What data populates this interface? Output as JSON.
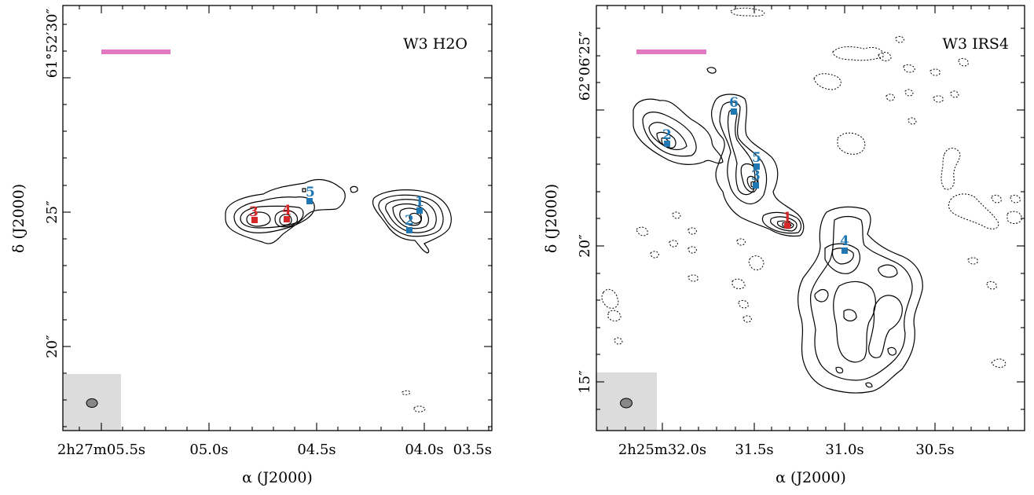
{
  "colors": {
    "scalebar": "#e377c2",
    "beam_box": "#dcdcdc",
    "beam": "#888888",
    "red_source": "#d62728",
    "blue_source": "#1f77b4"
  },
  "panels": [
    {
      "title": "W3 H2O",
      "ra_tick_labels": [
        "2h27m05.5s",
        "05.0s",
        "04.5s",
        "04.0s",
        "03.5s"
      ],
      "dec_tick_labels": [
        "61°52′30″",
        "25″",
        "20″"
      ],
      "xlabel": "α (J2000)",
      "ylabel": "δ (J2000)",
      "sources": [
        {
          "id": "1",
          "color": "blue"
        },
        {
          "id": "2",
          "color": "blue"
        },
        {
          "id": "3",
          "color": "red"
        },
        {
          "id": "4",
          "color": "red"
        },
        {
          "id": "5",
          "color": "blue"
        }
      ]
    },
    {
      "title": "W3 IRS4",
      "ra_tick_labels": [
        "2h25m32.0s",
        "31.5s",
        "31.0s",
        "30.5s"
      ],
      "dec_tick_labels": [
        "62°06′25″",
        "20″",
        "15″"
      ],
      "xlabel": "α (J2000)",
      "ylabel": "δ (J2000)",
      "sources": [
        {
          "id": "1",
          "color": "red"
        },
        {
          "id": "2",
          "color": "blue"
        },
        {
          "id": "3",
          "color": "blue"
        },
        {
          "id": "4",
          "color": "blue"
        },
        {
          "id": "5",
          "color": "blue"
        },
        {
          "id": "6",
          "color": "blue"
        }
      ]
    }
  ],
  "display": {
    "left": {
      "ra_major": [
        "2",
        "27",
        "05.5",
        "05.0",
        "04.5",
        "04.0",
        "03.5"
      ],
      "dec_top": "61°52′30″"
    }
  }
}
